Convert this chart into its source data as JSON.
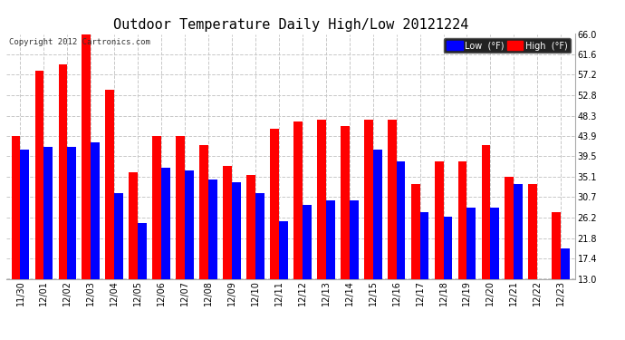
{
  "title": "Outdoor Temperature Daily High/Low 20121224",
  "copyright": "Copyright 2012 Cartronics.com",
  "legend_low": "Low  (°F)",
  "legend_high": "High  (°F)",
  "dates": [
    "11/30",
    "12/01",
    "12/02",
    "12/03",
    "12/04",
    "12/05",
    "12/06",
    "12/07",
    "12/08",
    "12/09",
    "12/10",
    "12/11",
    "12/12",
    "12/13",
    "12/14",
    "12/15",
    "12/16",
    "12/17",
    "12/18",
    "12/19",
    "12/20",
    "12/21",
    "12/22",
    "12/23"
  ],
  "highs": [
    44.0,
    58.0,
    59.5,
    66.0,
    54.0,
    36.0,
    44.0,
    44.0,
    42.0,
    37.5,
    35.5,
    45.5,
    47.0,
    47.5,
    46.0,
    47.5,
    47.5,
    33.5,
    38.5,
    38.5,
    42.0,
    35.0,
    33.5,
    27.5
  ],
  "lows": [
    41.0,
    41.5,
    41.5,
    42.5,
    31.5,
    25.0,
    37.0,
    36.5,
    34.5,
    34.0,
    31.5,
    25.5,
    29.0,
    30.0,
    30.0,
    41.0,
    38.5,
    27.5,
    26.5,
    28.5,
    28.5,
    33.5,
    13.0,
    19.5
  ],
  "ylim_min": 13.0,
  "ylim_max": 66.0,
  "yticks": [
    13.0,
    17.4,
    21.8,
    26.2,
    30.7,
    35.1,
    39.5,
    43.9,
    48.3,
    52.8,
    57.2,
    61.6,
    66.0
  ],
  "color_high": "#ff0000",
  "color_low": "#0000ff",
  "bg_color": "#ffffff",
  "grid_color": "#c8c8c8",
  "title_fontsize": 11,
  "tick_fontsize": 7,
  "bar_width": 0.38
}
